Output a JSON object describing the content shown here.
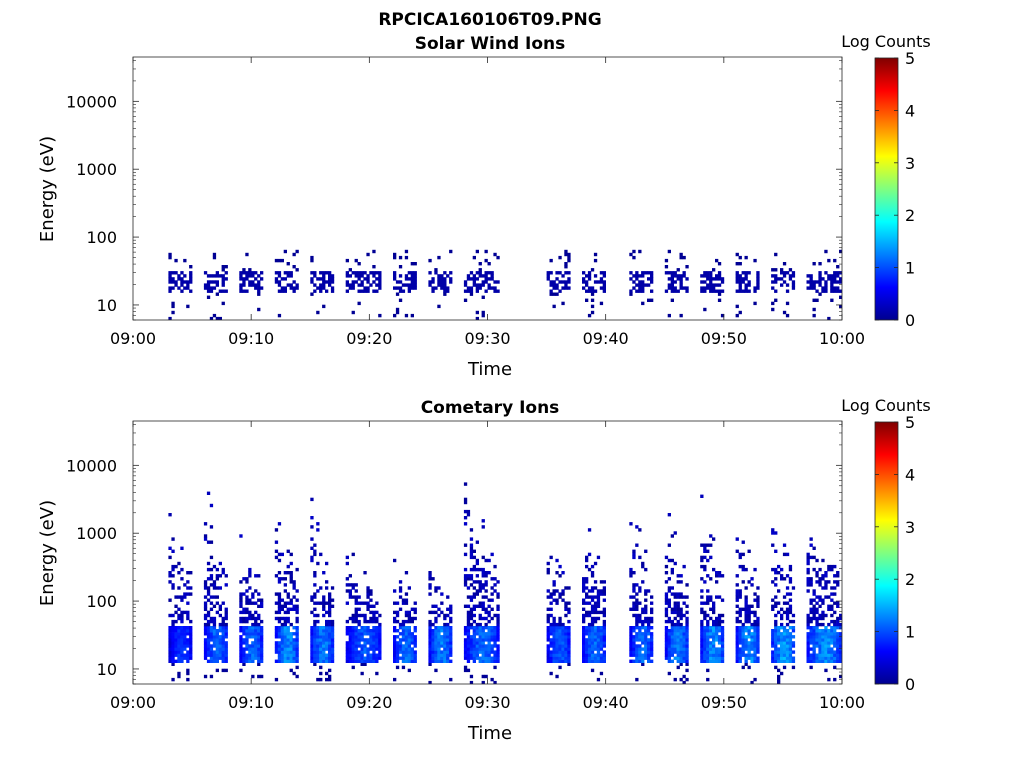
{
  "figure": {
    "title": "RPCICA160106T09.PNG"
  },
  "colormap": {
    "dark_blue": "#00008f",
    "blue": "#0000ff",
    "cyan": "#00ffff",
    "yellow": "#ffff00",
    "red": "#ff0000",
    "dark_red": "#800000"
  },
  "chart_data": [
    {
      "type": "heatmap",
      "title": "Solar Wind Ions",
      "xlabel": "Time",
      "ylabel": "Energy (eV)",
      "x_ticks": [
        "09:00",
        "09:10",
        "09:20",
        "09:30",
        "09:40",
        "09:50",
        "10:00"
      ],
      "y_ticks": [
        "10",
        "100",
        "1000",
        "10000"
      ],
      "xlim": [
        "09:00",
        "10:00"
      ],
      "ylim": [
        6,
        45000
      ],
      "y_scale": "log",
      "colorbar": {
        "label": "Log Counts",
        "ticks": [
          "0",
          "1",
          "2",
          "3",
          "4",
          "5"
        ],
        "range": [
          0,
          5
        ]
      },
      "data_gap": [
        "09:31",
        "09:35"
      ],
      "bursts": [
        {
          "start": "09:03",
          "end": "09:05",
          "peak": 0.2
        },
        {
          "start": "09:06",
          "end": "09:08",
          "peak": 0.2
        },
        {
          "start": "09:09",
          "end": "09:11",
          "peak": 0.2
        },
        {
          "start": "09:12",
          "end": "09:14",
          "peak": 0.2
        },
        {
          "start": "09:15",
          "end": "09:17",
          "peak": 0.2
        },
        {
          "start": "09:18",
          "end": "09:21",
          "peak": 0.2
        },
        {
          "start": "09:22",
          "end": "09:24",
          "peak": 0.2
        },
        {
          "start": "09:25",
          "end": "09:27",
          "peak": 0.2
        },
        {
          "start": "09:28",
          "end": "09:31",
          "peak": 0.2
        },
        {
          "start": "09:35",
          "end": "09:37",
          "peak": 0.2
        },
        {
          "start": "09:38",
          "end": "09:40",
          "peak": 0.2
        },
        {
          "start": "09:42",
          "end": "09:44",
          "peak": 0.2
        },
        {
          "start": "09:45",
          "end": "09:47",
          "peak": 0.2
        },
        {
          "start": "09:48",
          "end": "09:50",
          "peak": 0.2
        },
        {
          "start": "09:51",
          "end": "09:53",
          "peak": 0.2
        },
        {
          "start": "09:54",
          "end": "09:56",
          "peak": 0.2
        },
        {
          "start": "09:57",
          "end": "10:00",
          "peak": 0.2
        }
      ],
      "background_energy_range_eV": [
        100,
        15000
      ],
      "burst_energy_range_eV": [
        15,
        30
      ]
    },
    {
      "type": "heatmap",
      "title": "Cometary Ions",
      "xlabel": "Time",
      "ylabel": "Energy (eV)",
      "x_ticks": [
        "09:00",
        "09:10",
        "09:20",
        "09:30",
        "09:40",
        "09:50",
        "10:00"
      ],
      "y_ticks": [
        "10",
        "100",
        "1000",
        "10000"
      ],
      "xlim": [
        "09:00",
        "10:00"
      ],
      "ylim": [
        6,
        45000
      ],
      "y_scale": "log",
      "colorbar": {
        "label": "Log Counts",
        "ticks": [
          "0",
          "1",
          "2",
          "3",
          "4",
          "5"
        ],
        "range": [
          0,
          5
        ]
      },
      "data_gap": [
        "09:31",
        "09:35"
      ],
      "bursts": [
        {
          "start": "09:03",
          "end": "09:05",
          "peak": 1.0,
          "max_energy_eV": 2200
        },
        {
          "start": "09:06",
          "end": "09:08",
          "peak": 1.3,
          "max_energy_eV": 5500
        },
        {
          "start": "09:09",
          "end": "09:11",
          "peak": 1.3,
          "max_energy_eV": 1500
        },
        {
          "start": "09:12",
          "end": "09:14",
          "peak": 1.5,
          "max_energy_eV": 4000
        },
        {
          "start": "09:15",
          "end": "09:17",
          "peak": 1.4,
          "max_energy_eV": 3500
        },
        {
          "start": "09:18",
          "end": "09:21",
          "peak": 1.2,
          "max_energy_eV": 700
        },
        {
          "start": "09:22",
          "end": "09:24",
          "peak": 1.3,
          "max_energy_eV": 600
        },
        {
          "start": "09:25",
          "end": "09:27",
          "peak": 1.4,
          "max_energy_eV": 400
        },
        {
          "start": "09:28",
          "end": "09:31",
          "peak": 1.3,
          "max_energy_eV": 7000
        },
        {
          "start": "09:35",
          "end": "09:37",
          "peak": 1.2,
          "max_energy_eV": 1500
        },
        {
          "start": "09:38",
          "end": "09:40",
          "peak": 1.3,
          "max_energy_eV": 3000
        },
        {
          "start": "09:42",
          "end": "09:44",
          "peak": 1.3,
          "max_energy_eV": 3000
        },
        {
          "start": "09:45",
          "end": "09:47",
          "peak": 1.4,
          "max_energy_eV": 3000
        },
        {
          "start": "09:48",
          "end": "09:50",
          "peak": 1.5,
          "max_energy_eV": 4500
        },
        {
          "start": "09:51",
          "end": "09:53",
          "peak": 1.5,
          "max_energy_eV": 3000
        },
        {
          "start": "09:54",
          "end": "09:56",
          "peak": 1.6,
          "max_energy_eV": 2500
        },
        {
          "start": "09:57",
          "end": "10:00",
          "peak": 1.5,
          "max_energy_eV": 2200
        }
      ],
      "band_energy_range_eV": [
        12,
        40
      ]
    }
  ]
}
